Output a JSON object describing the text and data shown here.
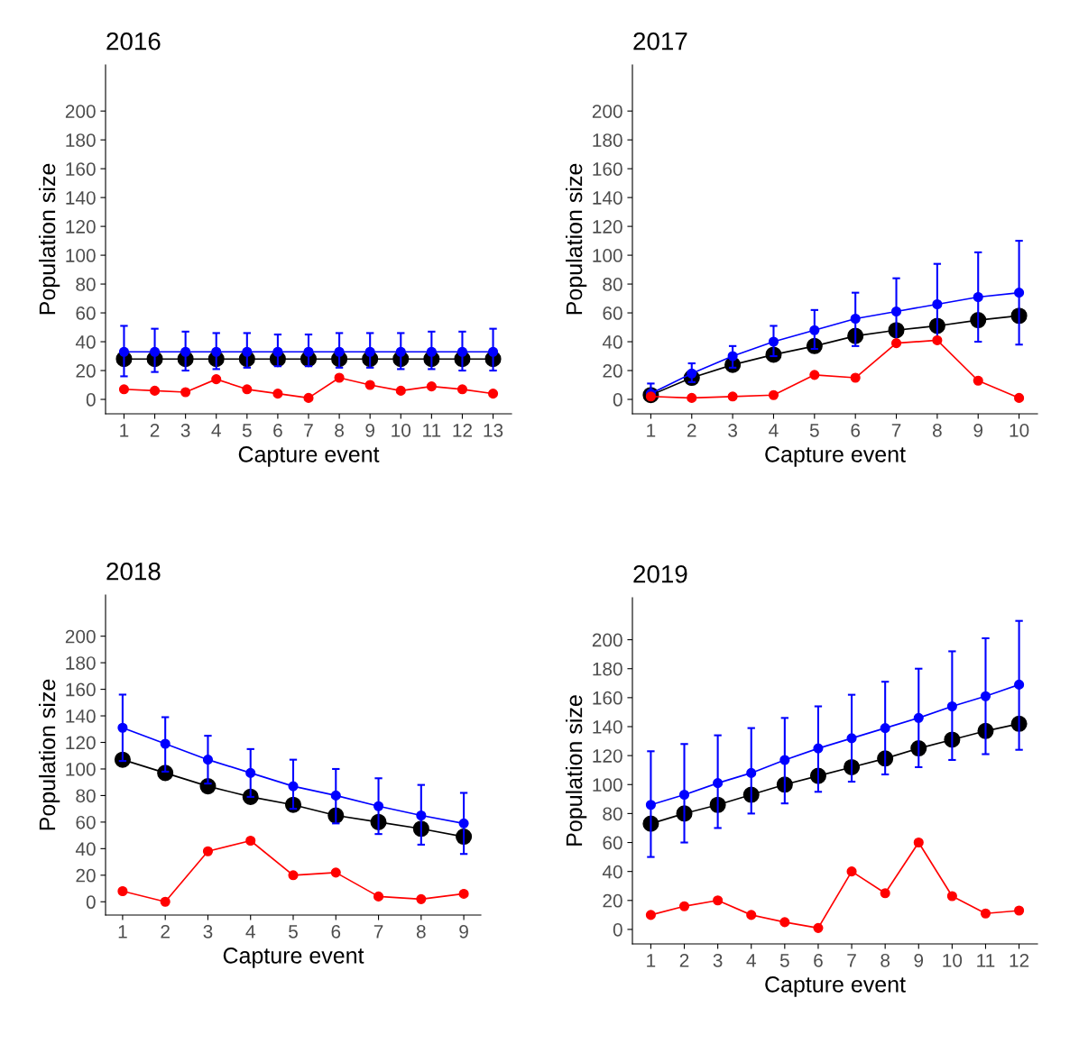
{
  "chart_data": [
    {
      "type": "line",
      "title": "2016",
      "xlabel": "Capture event",
      "ylabel": "Population size",
      "x": [
        1,
        2,
        3,
        4,
        5,
        6,
        7,
        8,
        9,
        10,
        11,
        12,
        13
      ],
      "xlim": [
        0.4,
        13.6
      ],
      "xticks": [
        1,
        2,
        3,
        4,
        5,
        6,
        7,
        8,
        9,
        10,
        11,
        12,
        13
      ],
      "ylim": [
        -10,
        232
      ],
      "yticks": [
        0,
        20,
        40,
        60,
        80,
        100,
        120,
        140,
        160,
        180,
        200
      ],
      "grid": false,
      "legend": false,
      "marker": "circle",
      "line_style": "solid",
      "series": [
        {
          "color": "#0000ff",
          "values": [
            33,
            33,
            33,
            33,
            33,
            33,
            33,
            33,
            33,
            33,
            33,
            33,
            33
          ],
          "errors": [
            [
              16,
              51
            ],
            [
              19,
              49
            ],
            [
              20,
              47
            ],
            [
              21,
              46
            ],
            [
              22,
              46
            ],
            [
              23,
              45
            ],
            [
              23,
              45
            ],
            [
              22,
              46
            ],
            [
              22,
              46
            ],
            [
              21,
              46
            ],
            [
              21,
              47
            ],
            [
              20,
              47
            ],
            [
              20,
              49
            ]
          ]
        },
        {
          "color": "#000000",
          "values": [
            28,
            28,
            28,
            28,
            28,
            28,
            28,
            28,
            28,
            28,
            28,
            28,
            28
          ]
        },
        {
          "color": "#ff0000",
          "values": [
            7,
            6,
            5,
            14,
            7,
            4,
            1,
            15,
            10,
            6,
            9,
            7,
            4
          ]
        }
      ]
    },
    {
      "type": "line",
      "title": "2017",
      "xlabel": "Capture event",
      "ylabel": "Population size",
      "x": [
        1,
        2,
        3,
        4,
        5,
        6,
        7,
        8,
        9,
        10
      ],
      "xlim": [
        0.55,
        10.45
      ],
      "xticks": [
        1,
        2,
        3,
        4,
        5,
        6,
        7,
        8,
        9,
        10
      ],
      "ylim": [
        -10,
        232
      ],
      "yticks": [
        0,
        20,
        40,
        60,
        80,
        100,
        120,
        140,
        160,
        180,
        200
      ],
      "grid": false,
      "legend": false,
      "marker": "circle",
      "line_style": "solid",
      "series": [
        {
          "color": "#0000ff",
          "values": [
            4,
            18,
            30,
            40,
            48,
            56,
            61,
            66,
            71,
            74
          ],
          "errors": [
            [
              3,
              11
            ],
            [
              12,
              25
            ],
            [
              22,
              37
            ],
            [
              30,
              51
            ],
            [
              35,
              62
            ],
            [
              37,
              74
            ],
            [
              38,
              84
            ],
            [
              40,
              94
            ],
            [
              40,
              102
            ],
            [
              38,
              110
            ]
          ]
        },
        {
          "color": "#000000",
          "values": [
            3,
            15,
            24,
            31,
            37,
            44,
            48,
            51,
            55,
            58
          ]
        },
        {
          "color": "#ff0000",
          "values": [
            2,
            1,
            2,
            3,
            17,
            15,
            39,
            41,
            13,
            1
          ]
        }
      ]
    },
    {
      "type": "line",
      "title": "2018",
      "xlabel": "Capture event",
      "ylabel": "Population size",
      "x": [
        1,
        2,
        3,
        4,
        5,
        6,
        7,
        8,
        9
      ],
      "xlim": [
        0.6,
        9.4
      ],
      "xticks": [
        1,
        2,
        3,
        4,
        5,
        6,
        7,
        8,
        9
      ],
      "ylim": [
        -10,
        231
      ],
      "yticks": [
        0,
        20,
        40,
        60,
        80,
        100,
        120,
        140,
        160,
        180,
        200
      ],
      "grid": false,
      "legend": false,
      "marker": "circle",
      "line_style": "solid",
      "series": [
        {
          "color": "#0000ff",
          "values": [
            131,
            119,
            107,
            97,
            87,
            80,
            72,
            65,
            59
          ],
          "errors": [
            [
              106,
              156
            ],
            [
              98,
              139
            ],
            [
              89,
              125
            ],
            [
              79,
              115
            ],
            [
              70,
              107
            ],
            [
              59,
              100
            ],
            [
              51,
              93
            ],
            [
              43,
              88
            ],
            [
              36,
              82
            ]
          ]
        },
        {
          "color": "#000000",
          "values": [
            107,
            97,
            87,
            79,
            73,
            65,
            60,
            55,
            49
          ]
        },
        {
          "color": "#ff0000",
          "values": [
            8,
            0,
            38,
            46,
            20,
            22,
            4,
            2,
            6
          ]
        }
      ]
    },
    {
      "type": "line",
      "title": "2019",
      "xlabel": "Capture event",
      "ylabel": "Population size",
      "x": [
        1,
        2,
        3,
        4,
        5,
        6,
        7,
        8,
        9,
        10,
        11,
        12
      ],
      "xlim": [
        0.45,
        12.55
      ],
      "xticks": [
        1,
        2,
        3,
        4,
        5,
        6,
        7,
        8,
        9,
        10,
        11,
        12
      ],
      "ylim": [
        -10,
        229
      ],
      "yticks": [
        0,
        20,
        40,
        60,
        80,
        100,
        120,
        140,
        160,
        180,
        200
      ],
      "grid": false,
      "legend": false,
      "marker": "circle",
      "line_style": "solid",
      "series": [
        {
          "color": "#0000ff",
          "values": [
            86,
            93,
            101,
            108,
            117,
            125,
            132,
            139,
            146,
            154,
            161,
            169
          ],
          "errors": [
            [
              50,
              123
            ],
            [
              60,
              128
            ],
            [
              70,
              134
            ],
            [
              80,
              139
            ],
            [
              87,
              146
            ],
            [
              95,
              154
            ],
            [
              102,
              162
            ],
            [
              107,
              171
            ],
            [
              112,
              180
            ],
            [
              117,
              192
            ],
            [
              121,
              201
            ],
            [
              124,
              213
            ]
          ]
        },
        {
          "color": "#000000",
          "values": [
            73,
            80,
            86,
            93,
            100,
            106,
            112,
            118,
            125,
            131,
            137,
            142
          ]
        },
        {
          "color": "#ff0000",
          "values": [
            10,
            16,
            20,
            10,
            5,
            1,
            40,
            25,
            60,
            23,
            11,
            13
          ]
        }
      ]
    }
  ]
}
